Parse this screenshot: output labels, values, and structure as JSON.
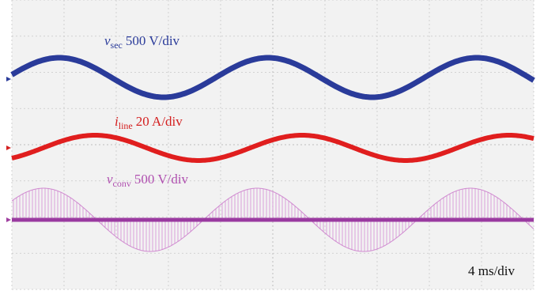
{
  "traces": [
    {
      "symbol": "v",
      "subscript": "sec",
      "scale": "500 V/div"
    },
    {
      "symbol": "i",
      "subscript": "line",
      "scale": "20 A/div"
    },
    {
      "symbol": "v",
      "subscript": "conv",
      "scale": "500 V/div"
    }
  ],
  "timebase": "4 ms/div"
}
